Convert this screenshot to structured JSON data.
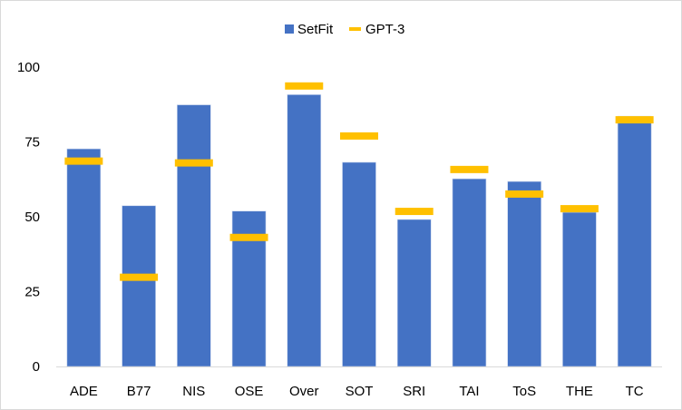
{
  "chart_data": {
    "type": "bar",
    "title": "",
    "xlabel": "",
    "ylabel": "",
    "ylim": [
      0,
      100
    ],
    "yticks": [
      0,
      25,
      50,
      75,
      100
    ],
    "grid": false,
    "legend_position": "top-center",
    "categories": [
      "ADE",
      "B77",
      "NIS",
      "OSE",
      "Over",
      "SOT",
      "SRI",
      "TAI",
      "ToS",
      "THE",
      "TC"
    ],
    "series": [
      {
        "name": "SetFit",
        "kind": "bar",
        "color": "#4472C4",
        "values": [
          72.7,
          53.7,
          87.4,
          51.9,
          90.8,
          68.2,
          49.1,
          62.7,
          61.8,
          51.5,
          83.6
        ]
      },
      {
        "name": "GPT-3",
        "kind": "marker-line",
        "color": "#FFC000",
        "values": [
          68.6,
          29.8,
          68.0,
          43.1,
          93.7,
          77.0,
          51.8,
          65.8,
          57.6,
          52.7,
          82.4
        ]
      }
    ]
  }
}
